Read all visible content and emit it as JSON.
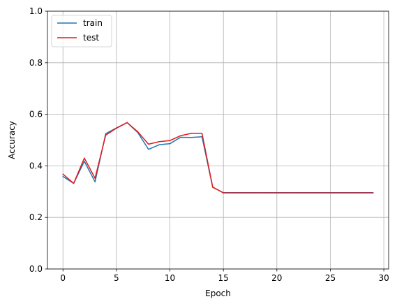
{
  "chart_data": {
    "type": "line",
    "title": "",
    "xlabel": "Epoch",
    "ylabel": "Accuracy",
    "xlim": [
      -1.45,
      30.45
    ],
    "ylim": [
      0,
      1
    ],
    "xticks": [
      0,
      5,
      10,
      15,
      20,
      25,
      30
    ],
    "yticks": [
      0.0,
      0.2,
      0.4,
      0.6,
      0.8,
      1.0
    ],
    "ytick_labels": [
      "0.0",
      "0.2",
      "0.4",
      "0.6",
      "0.8",
      "1.0"
    ],
    "grid": true,
    "legend_position": "top-left",
    "x": [
      0,
      1,
      2,
      3,
      4,
      5,
      6,
      7,
      8,
      9,
      10,
      11,
      12,
      13,
      14,
      15,
      16,
      17,
      18,
      19,
      20,
      21,
      22,
      23,
      24,
      25,
      26,
      27,
      28,
      29
    ],
    "series": [
      {
        "name": "train",
        "color": "#1f77b4",
        "values": [
          0.359,
          0.332,
          0.418,
          0.338,
          0.525,
          0.547,
          0.568,
          0.529,
          0.464,
          0.482,
          0.486,
          0.511,
          0.51,
          0.513,
          0.317,
          0.296,
          0.296,
          0.296,
          0.296,
          0.296,
          0.296,
          0.296,
          0.296,
          0.296,
          0.296,
          0.296,
          0.296,
          0.296,
          0.296,
          0.296
        ]
      },
      {
        "name": "test",
        "color": "#e31a1c",
        "values": [
          0.368,
          0.332,
          0.43,
          0.352,
          0.519,
          0.546,
          0.568,
          0.532,
          0.484,
          0.494,
          0.498,
          0.517,
          0.526,
          0.526,
          0.318,
          0.295,
          0.295,
          0.295,
          0.295,
          0.295,
          0.295,
          0.295,
          0.295,
          0.295,
          0.295,
          0.295,
          0.295,
          0.295,
          0.295,
          0.295
        ]
      }
    ]
  }
}
